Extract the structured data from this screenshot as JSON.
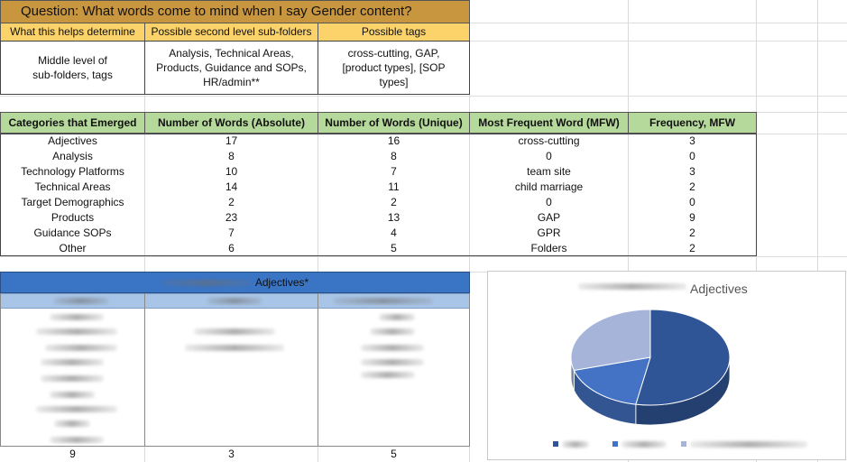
{
  "question": "Question: What words come to mind when I say Gender content?",
  "header_cols": [
    "What this helps determine",
    "Possible second level sub-folders",
    "Possible tags"
  ],
  "header_vals": [
    "Middle level of sub-folders, tags",
    "Analysis, Technical Areas, Products, Guidance and SOPs, HR/admin**",
    "cross-cutting, GAP, [product types], [SOP types]"
  ],
  "table": {
    "columns": [
      "Categories that Emerged",
      "Number of Words (Absolute)",
      "Number of Words (Unique)",
      "Most Frequent Word (MFW)",
      "Frequency, MFW"
    ],
    "rows": [
      [
        "Adjectives",
        "17",
        "16",
        "cross-cutting",
        "3"
      ],
      [
        "Analysis",
        "8",
        "8",
        "0",
        "0"
      ],
      [
        "Technology Platforms",
        "10",
        "7",
        "team site",
        "3"
      ],
      [
        "Technical Areas",
        "14",
        "11",
        "child marriage",
        "2"
      ],
      [
        "Target Demographics",
        "2",
        "2",
        "0",
        "0"
      ],
      [
        "Products",
        "23",
        "13",
        "GAP",
        "9"
      ],
      [
        "Guidance SOPs",
        "7",
        "4",
        "GPR",
        "2"
      ],
      [
        "Other",
        "6",
        "5",
        "Folders",
        "2"
      ]
    ]
  },
  "adj_table": {
    "title": "Adjectives*",
    "totals": [
      "9",
      "3",
      "5"
    ]
  },
  "chart": {
    "title": "Adjectives",
    "colors": [
      "#2f5597",
      "#4472c4",
      "#a5b4d8"
    ]
  },
  "chart_data": {
    "type": "pie",
    "title": "Adjectives",
    "values": [
      9,
      3,
      5
    ],
    "colors": [
      "#2f5597",
      "#4472c4",
      "#a5b4d8"
    ],
    "legend": "bottom"
  }
}
